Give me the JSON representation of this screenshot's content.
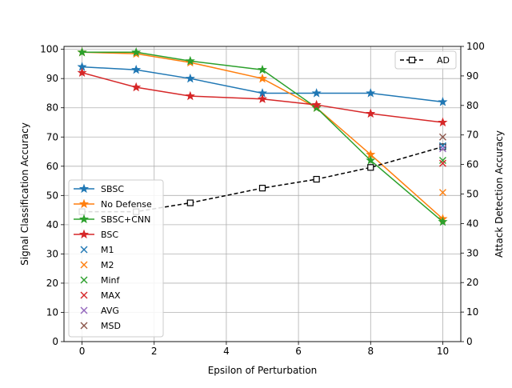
{
  "chart_data": {
    "type": "line",
    "title": "",
    "xlabel": "Epsilon of Perturbation",
    "ylabel": "Signal Classification Accuracy",
    "y2label": "Attack Detection Accuracy",
    "xlim": [
      -0.5,
      10.5
    ],
    "ylim": [
      0,
      101
    ],
    "y2lim": [
      0,
      100
    ],
    "xticks": [
      "0",
      "2",
      "4",
      "6",
      "8",
      "10"
    ],
    "yticks": [
      "0",
      "10",
      "20",
      "30",
      "40",
      "50",
      "60",
      "70",
      "80",
      "90",
      "100"
    ],
    "y2ticks": [
      "0",
      "10",
      "20",
      "30",
      "40",
      "50",
      "60",
      "70",
      "80",
      "90",
      "100"
    ],
    "grid": true,
    "legend_left_position": "center-left",
    "legend_right_position": "upper-right",
    "series": [
      {
        "name": "SBSC",
        "color": "#1f77b4",
        "marker": "star",
        "axis": "left",
        "x": [
          0,
          1.5,
          3,
          5,
          6.5,
          8,
          10
        ],
        "y": [
          94,
          93,
          90,
          85,
          85,
          85,
          82
        ]
      },
      {
        "name": "No Defense",
        "color": "#ff7f0e",
        "marker": "star",
        "axis": "left",
        "x": [
          0,
          1.5,
          3,
          5,
          6.5,
          8,
          10
        ],
        "y": [
          99,
          98.5,
          95.5,
          90,
          80,
          64,
          42
        ]
      },
      {
        "name": "SBSC+CNN",
        "color": "#2ca02c",
        "marker": "star",
        "axis": "left",
        "x": [
          0,
          1.5,
          3,
          5,
          6.5,
          8,
          10
        ],
        "y": [
          99,
          99,
          96,
          93,
          80,
          62,
          41
        ]
      },
      {
        "name": "BSC",
        "color": "#d62728",
        "marker": "star",
        "axis": "left",
        "x": [
          0,
          1.5,
          3,
          5,
          6.5,
          8,
          10
        ],
        "y": [
          92,
          87,
          84,
          83,
          81,
          78,
          75
        ]
      }
    ],
    "points": [
      {
        "name": "M1",
        "color": "#1f77b4",
        "marker": "x",
        "x": 10,
        "y": 67
      },
      {
        "name": "M2",
        "color": "#ff7f0e",
        "marker": "x",
        "x": 10,
        "y": 51
      },
      {
        "name": "Minf",
        "color": "#2ca02c",
        "marker": "x",
        "x": 10,
        "y": 62
      },
      {
        "name": "MAX",
        "color": "#d62728",
        "marker": "x",
        "x": 10,
        "y": 61
      },
      {
        "name": "AVG",
        "color": "#9467bd",
        "marker": "x",
        "x": 10,
        "y": 66
      },
      {
        "name": "MSD",
        "color": "#8c564b",
        "marker": "x",
        "x": 10,
        "y": 70
      }
    ],
    "right_series": [
      {
        "name": "AD",
        "color": "#000000",
        "marker": "square",
        "linestyle": "dashed",
        "axis": "right",
        "x": [
          0,
          1.5,
          3,
          5,
          6.5,
          8,
          10
        ],
        "y": [
          44,
          44,
          47,
          52,
          55,
          59,
          66
        ]
      }
    ]
  }
}
